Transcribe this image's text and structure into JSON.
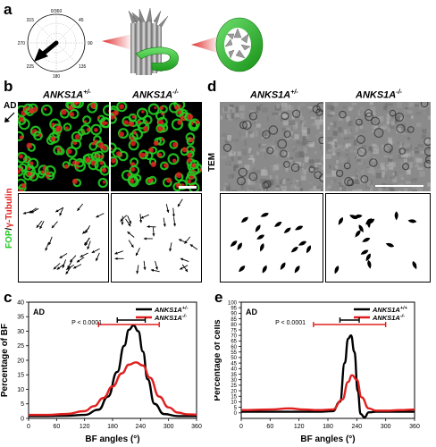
{
  "panels": {
    "a": {
      "label": "a",
      "compass_ticks": [
        "0/360",
        "45",
        "90",
        "135",
        "180",
        "225",
        "270",
        "315"
      ]
    },
    "b": {
      "label": "b",
      "genotype_left": "ANKS1A",
      "genotype_left_sup": "+/-",
      "genotype_right": "ANKS1A",
      "genotype_right_sup": "-/-",
      "side_label_ad": "AD",
      "side_label_fop": "FOP",
      "side_label_sep": "/",
      "side_label_tubulin": "γ-Tubulin",
      "colors": {
        "fop": "#22cc22",
        "tubulin": "#e02020"
      }
    },
    "d": {
      "label": "d",
      "genotype_left": "ANKS1A",
      "genotype_left_sup": "+/-",
      "genotype_right": "ANKS1A",
      "genotype_right_sup": "-/-",
      "side_label": "TEM"
    },
    "c": {
      "label": "c",
      "annotation": "AD",
      "pvalue": "P < 0.0001"
    },
    "e": {
      "label": "e",
      "annotation": "AD",
      "pvalue": "P < 0.0001"
    }
  },
  "chart_data": [
    {
      "panel": "c",
      "type": "line",
      "xlabel": "BF angles (°)",
      "ylabel": "Percentage of BF",
      "xlim": [
        0,
        360
      ],
      "ylim": [
        0,
        40
      ],
      "xticks": [
        0,
        60,
        120,
        180,
        240,
        300,
        360
      ],
      "yticks": [
        0,
        5,
        10,
        15,
        20,
        25,
        30,
        35,
        40
      ],
      "legend_position": "top-right",
      "series": [
        {
          "name": "ANKS1A",
          "name_sup": "+/-",
          "color": "#000000",
          "x": [
            0,
            40,
            80,
            120,
            150,
            170,
            190,
            205,
            215,
            225,
            235,
            245,
            255,
            270,
            290,
            320,
            360
          ],
          "y": [
            0.8,
            0.8,
            0.9,
            1.2,
            3,
            7.5,
            16,
            25,
            30.5,
            32,
            30,
            23,
            13.5,
            5,
            1.5,
            0.8,
            0.8
          ]
        },
        {
          "name": "ANKS1A",
          "name_sup": "-/-",
          "color": "#e02020",
          "x": [
            0,
            40,
            80,
            120,
            140,
            160,
            180,
            200,
            215,
            230,
            245,
            260,
            280,
            300,
            320,
            340,
            360
          ],
          "y": [
            1.2,
            1.2,
            1.5,
            2.5,
            4.2,
            7,
            11,
            15.5,
            18.5,
            19.3,
            18.2,
            14,
            7.5,
            3.8,
            2,
            1.4,
            1.3
          ]
        }
      ],
      "interval_markers": [
        {
          "color": "#000000",
          "x_start": 190,
          "x_end": 250
        },
        {
          "color": "#e02020",
          "x_start": 150,
          "x_end": 280
        }
      ]
    },
    {
      "panel": "e",
      "type": "line",
      "xlabel": "BF angles (°)",
      "ylabel": "Percentage of cells",
      "xlim": [
        0,
        360
      ],
      "ylim": [
        -5,
        100
      ],
      "xticks": [
        0,
        60,
        120,
        180,
        240,
        300,
        360
      ],
      "yticks": [
        0,
        5,
        10,
        15,
        20,
        25,
        30,
        35,
        40,
        45,
        50,
        55,
        60,
        65,
        70,
        75,
        80,
        85,
        90,
        95,
        100
      ],
      "legend_position": "top-right",
      "series": [
        {
          "name": "ANKS1A",
          "name_sup": "+/+",
          "color": "#000000",
          "x": [
            0,
            60,
            120,
            160,
            190,
            205,
            215,
            222,
            228,
            235,
            242,
            248,
            256,
            265,
            280,
            300,
            360
          ],
          "y": [
            1,
            1,
            1,
            1,
            1.5,
            10,
            45,
            67,
            70,
            55,
            20,
            -1,
            -4,
            0.5,
            1,
            1,
            1
          ]
        },
        {
          "name": "ANKS1A",
          "name_sup": "-/-",
          "color": "#e02020",
          "x": [
            0,
            60,
            100,
            130,
            160,
            190,
            210,
            222,
            230,
            240,
            250,
            265,
            280,
            300,
            330,
            360
          ],
          "y": [
            2.5,
            3,
            4,
            3,
            2.5,
            3,
            12,
            28,
            34,
            30,
            14,
            4,
            2,
            2,
            2.5,
            3
          ]
        }
      ],
      "interval_markers": [
        {
          "color": "#000000",
          "x_start": 205,
          "x_end": 245
        },
        {
          "color": "#e02020",
          "x_start": 150,
          "x_end": 300
        }
      ]
    }
  ]
}
